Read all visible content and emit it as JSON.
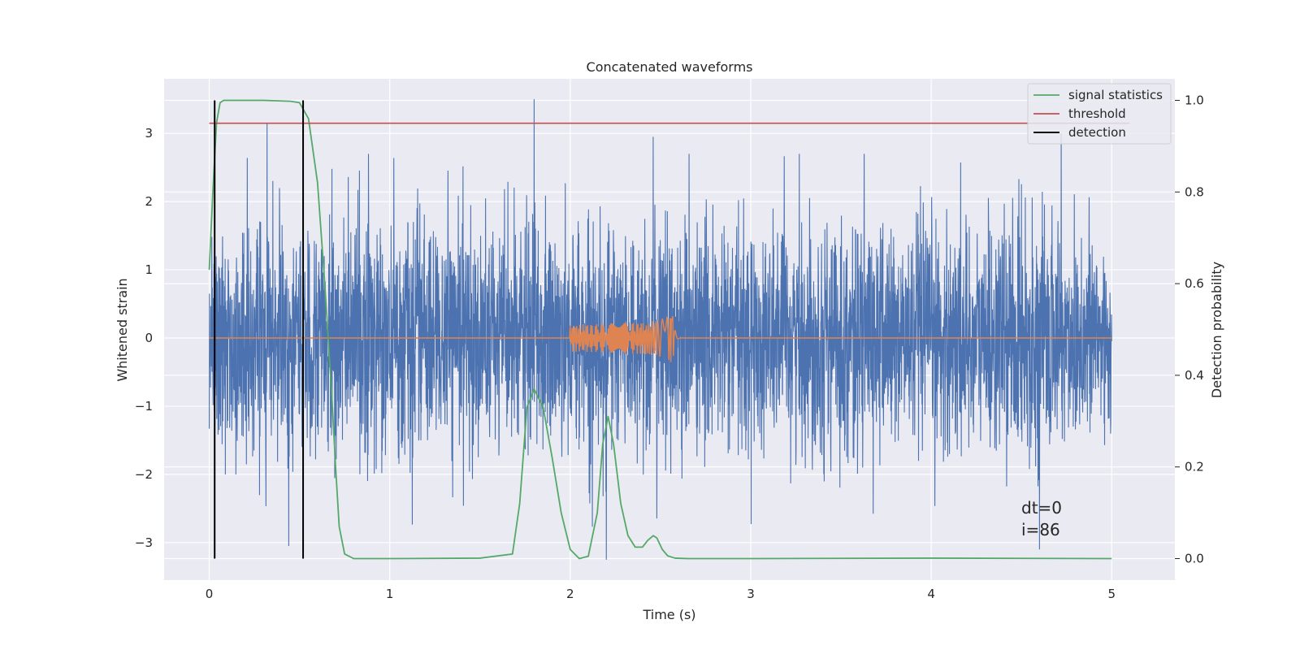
{
  "chart_data": {
    "type": "line",
    "title": "Concatenated waveforms",
    "xlabel": "Time (s)",
    "ylabel": "Whitened strain",
    "y2label": "Detection probability",
    "xlim": [
      -0.25,
      5.35
    ],
    "ylim": [
      -3.55,
      3.8
    ],
    "y2lim": [
      -0.047,
      1.047
    ],
    "x_ticks": [
      0,
      1,
      2,
      3,
      4,
      5
    ],
    "x_tick_labels": [
      "0",
      "1",
      "2",
      "3",
      "4",
      "5"
    ],
    "y_ticks": [
      -3,
      -2,
      -1,
      0,
      1,
      2,
      3
    ],
    "y_tick_labels": [
      "−3",
      "−2",
      "−1",
      "0",
      "1",
      "2",
      "3"
    ],
    "y2_ticks": [
      0.0,
      0.2,
      0.4,
      0.6,
      0.8,
      1.0
    ],
    "y2_tick_labels": [
      "0.0",
      "0.2",
      "0.4",
      "0.6",
      "0.8",
      "1.0"
    ],
    "grid": true,
    "legend_position": "top-right",
    "colors": {
      "background": "#eaeaf2",
      "grid": "#ffffff",
      "strain": "#4c72b0",
      "template": "#dd8452",
      "statistics": "#55a868",
      "threshold": "#c44e52",
      "detection": "#000000"
    },
    "series": [
      {
        "name": "",
        "axis": "left",
        "kind": "noise",
        "x_range": [
          0,
          5
        ],
        "typical_amplitude": [
          -1.0,
          2.0
        ],
        "peak_values": [
          {
            "x": 0.32,
            "y": 3.15
          },
          {
            "x": 1.8,
            "y": 3.5
          },
          {
            "x": 2.46,
            "y": 2.95
          },
          {
            "x": 4.72,
            "y": 3.0
          },
          {
            "x": 2.2,
            "y": -3.25
          },
          {
            "x": 4.6,
            "y": -3.1
          },
          {
            "x": 0.44,
            "y": -3.05
          }
        ]
      },
      {
        "name": "",
        "axis": "left",
        "kind": "chirp",
        "x_range": [
          2.0,
          2.6
        ],
        "start_amplitude": 0.1,
        "peak_amplitude": 0.5,
        "merger_time": 2.57
      },
      {
        "name": "signal statistics",
        "axis": "right",
        "x": [
          0.0,
          0.02,
          0.04,
          0.06,
          0.08,
          0.1,
          0.15,
          0.3,
          0.45,
          0.5,
          0.55,
          0.6,
          0.64,
          0.68,
          0.7,
          0.72,
          0.75,
          0.8,
          1.0,
          1.5,
          1.68,
          1.72,
          1.76,
          1.8,
          1.85,
          1.9,
          1.95,
          2.0,
          2.05,
          2.1,
          2.15,
          2.18,
          2.21,
          2.24,
          2.28,
          2.32,
          2.36,
          2.4,
          2.43,
          2.46,
          2.48,
          2.51,
          2.54,
          2.58,
          2.65,
          3.0,
          4.0,
          5.0
        ],
        "values": [
          0.63,
          0.8,
          0.95,
          0.995,
          1.0,
          1.0,
          1.0,
          1.0,
          0.998,
          0.995,
          0.96,
          0.82,
          0.6,
          0.35,
          0.2,
          0.07,
          0.01,
          0.0,
          0.0,
          0.001,
          0.01,
          0.12,
          0.33,
          0.37,
          0.33,
          0.22,
          0.1,
          0.02,
          0.0,
          0.005,
          0.1,
          0.25,
          0.31,
          0.25,
          0.12,
          0.05,
          0.025,
          0.025,
          0.04,
          0.05,
          0.045,
          0.02,
          0.006,
          0.001,
          0.0,
          0.0,
          0.001,
          0.0
        ]
      },
      {
        "name": "threshold",
        "axis": "right",
        "x": [
          0.0,
          5.1
        ],
        "values": [
          0.95,
          0.95
        ]
      },
      {
        "name": "detection",
        "axis": "right",
        "kind": "vlines",
        "x": [
          0.03,
          0.52
        ],
        "range": [
          0.0,
          1.0
        ]
      }
    ],
    "annotations": [
      "dt=0",
      "i=86"
    ],
    "annotation_position": "bottom-right"
  }
}
